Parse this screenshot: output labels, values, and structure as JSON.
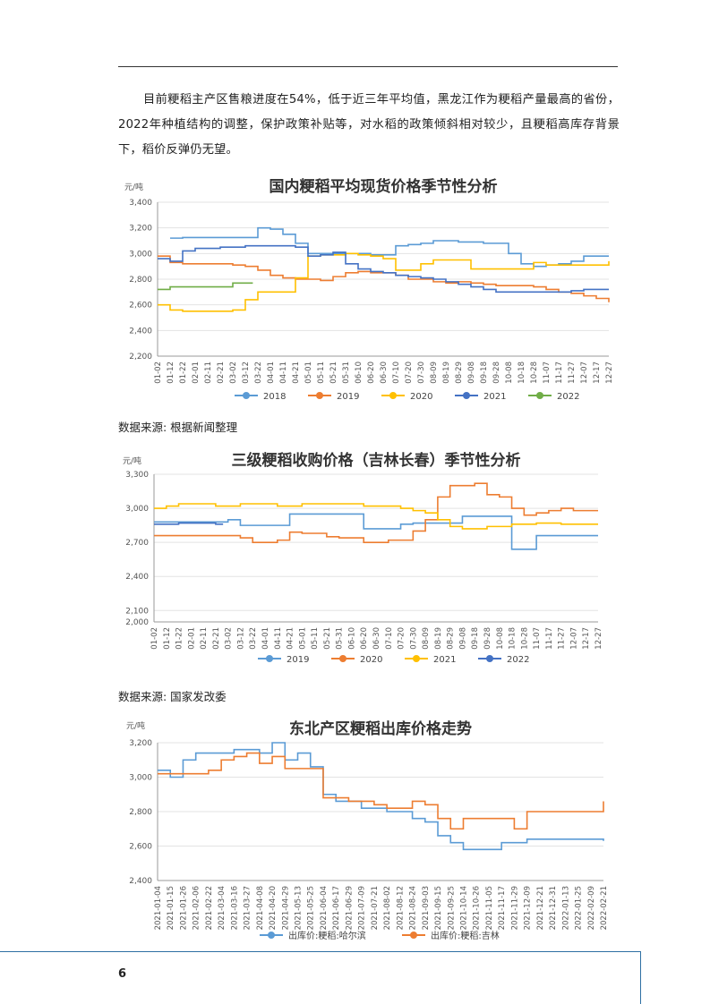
{
  "paragraph": "目前粳稻主产区售粮进度在54%，低于近三年平均值，黑龙江作为粳稻产量最高的省份，2022年种植结构的调整，保护政策补贴等，对水稻的政策倾斜相对较少，且粳稻高库存背景下，稻价反弹仍无望。",
  "source1": "数据来源: 根据新闻整理",
  "source2": "数据来源: 国家发改委",
  "page_number": "6",
  "chart_data": [
    {
      "type": "line",
      "title": "国内粳稻平均现货价格季节性分析",
      "unit": "元/吨",
      "ylim": [
        2200,
        3400
      ],
      "yticks": [
        "2,200",
        "2,400",
        "2,600",
        "2,800",
        "3,000",
        "3,200",
        "3,400"
      ],
      "categories": [
        "01-02",
        "01-12",
        "01-22",
        "02-01",
        "02-11",
        "02-21",
        "03-02",
        "03-12",
        "03-22",
        "04-01",
        "04-11",
        "04-21",
        "05-01",
        "05-11",
        "05-21",
        "05-31",
        "06-10",
        "06-20",
        "06-30",
        "07-10",
        "07-20",
        "07-30",
        "08-09",
        "08-19",
        "08-29",
        "09-08",
        "09-18",
        "09-28",
        "10-08",
        "10-18",
        "10-28",
        "11-07",
        "11-17",
        "11-27",
        "12-07",
        "12-17",
        "12-27"
      ],
      "series": [
        {
          "name": "2018",
          "color": "#5b9bd5",
          "values": [
            null,
            3120,
            3125,
            3125,
            3125,
            3125,
            3125,
            3125,
            3200,
            3190,
            3150,
            3080,
            3000,
            3000,
            3000,
            3000,
            3000,
            2990,
            2990,
            3060,
            3070,
            3080,
            3100,
            3100,
            3090,
            3090,
            3080,
            3080,
            3000,
            2920,
            2900,
            2910,
            2920,
            2940,
            2980,
            2980,
            2980
          ]
        },
        {
          "name": "2019",
          "color": "#ed7d31",
          "values": [
            2980,
            2930,
            2920,
            2920,
            2920,
            2920,
            2910,
            2900,
            2870,
            2830,
            2810,
            2800,
            2800,
            2790,
            2820,
            2850,
            2860,
            2850,
            2850,
            2830,
            2800,
            2800,
            2780,
            2770,
            2780,
            2770,
            2760,
            2750,
            2750,
            2750,
            2740,
            2720,
            2700,
            2690,
            2670,
            2650,
            2620
          ]
        },
        {
          "name": "2020",
          "color": "#ffc000",
          "values": [
            2600,
            2560,
            2550,
            2550,
            2550,
            2550,
            2560,
            2640,
            2700,
            2700,
            2700,
            2810,
            2980,
            2990,
            2990,
            3000,
            2990,
            2980,
            2960,
            2870,
            2870,
            2920,
            2950,
            2950,
            2950,
            2880,
            2880,
            2880,
            2880,
            2880,
            2930,
            2910,
            2910,
            2910,
            2910,
            2910,
            2940
          ]
        },
        {
          "name": "2021",
          "color": "#4472c4",
          "values": [
            2960,
            2940,
            3020,
            3040,
            3040,
            3050,
            3050,
            3060,
            3060,
            3060,
            3060,
            3050,
            2980,
            2990,
            3010,
            2920,
            2880,
            2860,
            2850,
            2830,
            2820,
            2810,
            2800,
            2780,
            2760,
            2740,
            2720,
            2700,
            2700,
            2700,
            2700,
            2700,
            2700,
            2710,
            2720,
            2720,
            2720
          ]
        },
        {
          "name": "2022",
          "color": "#70ad47",
          "values": [
            2720,
            2740,
            2740,
            2740,
            2740,
            2740,
            2770,
            2770,
            null,
            null,
            null,
            null,
            null,
            null,
            null,
            null,
            null,
            null,
            null,
            null,
            null,
            null,
            null,
            null,
            null,
            null,
            null,
            null,
            null,
            null,
            null,
            null,
            null,
            null,
            null,
            null,
            null
          ]
        }
      ]
    },
    {
      "type": "line",
      "title": "三级粳稻收购价格（吉林长春）季节性分析",
      "unit": "元/吨",
      "ylim": [
        2000,
        3300
      ],
      "yticks": [
        "2,000",
        "2,100",
        "2,400",
        "2,700",
        "3,000",
        "3,300"
      ],
      "categories": [
        "01-02",
        "01-12",
        "01-22",
        "02-01",
        "02-11",
        "02-21",
        "03-02",
        "03-12",
        "03-22",
        "04-01",
        "04-11",
        "04-21",
        "05-01",
        "05-11",
        "05-21",
        "05-31",
        "06-10",
        "06-20",
        "06-30",
        "07-10",
        "07-20",
        "07-30",
        "08-09",
        "08-19",
        "08-29",
        "09-08",
        "09-18",
        "09-28",
        "10-08",
        "10-18",
        "10-28",
        "11-07",
        "11-17",
        "11-27",
        "12-07",
        "12-17",
        "12-27"
      ],
      "series": [
        {
          "name": "2019",
          "color": "#5b9bd5",
          "values": [
            2880,
            2880,
            2880,
            2880,
            2880,
            2880,
            2900,
            2850,
            2850,
            2850,
            2850,
            2950,
            2950,
            2950,
            2950,
            2950,
            2950,
            2820,
            2820,
            2820,
            2860,
            2870,
            2870,
            2870,
            2870,
            2930,
            2930,
            2930,
            2930,
            2640,
            2640,
            2760,
            2760,
            2760,
            2760,
            2760,
            2760
          ]
        },
        {
          "name": "2020",
          "color": "#ed7d31",
          "values": [
            2760,
            2760,
            2760,
            2760,
            2760,
            2760,
            2760,
            2740,
            2700,
            2700,
            2720,
            2790,
            2780,
            2780,
            2750,
            2740,
            2740,
            2700,
            2700,
            2720,
            2720,
            2800,
            2900,
            3100,
            3200,
            3200,
            3220,
            3120,
            3100,
            3000,
            2940,
            2960,
            2980,
            3000,
            2980,
            2980,
            2980
          ]
        },
        {
          "name": "2021",
          "color": "#ffc000",
          "values": [
            3000,
            3020,
            3040,
            3040,
            3040,
            3020,
            3020,
            3040,
            3040,
            3040,
            3020,
            3020,
            3040,
            3040,
            3040,
            3040,
            3040,
            3020,
            3020,
            3020,
            3000,
            2980,
            2960,
            2900,
            2840,
            2820,
            2820,
            2840,
            2840,
            2860,
            2860,
            2870,
            2870,
            2860,
            2860,
            2860,
            2860
          ]
        },
        {
          "name": "2022",
          "color": "#4472c4",
          "values": [
            2860,
            2860,
            2870,
            2870,
            2870,
            2860,
            null,
            null,
            null,
            null,
            null,
            null,
            null,
            null,
            null,
            null,
            null,
            null,
            null,
            null,
            null,
            null,
            null,
            null,
            null,
            null,
            null,
            null,
            null,
            null,
            null,
            null,
            null,
            null,
            null,
            null,
            null
          ]
        }
      ]
    },
    {
      "type": "line",
      "title": "东北产区粳稻出库价格走势",
      "unit": "元/吨",
      "ylim": [
        2400,
        3200
      ],
      "yticks": [
        "2,400",
        "2,600",
        "2,800",
        "3,000",
        "3,200"
      ],
      "categories": [
        "2021-01-04",
        "2021-01-15",
        "2021-01-26",
        "2021-02-06",
        "2021-02-22",
        "2021-03-04",
        "2021-03-16",
        "2021-03-27",
        "2021-04-08",
        "2021-04-20",
        "2021-04-29",
        "2021-05-13",
        "2021-05-25",
        "2021-06-04",
        "2021-06-17",
        "2021-06-29",
        "2021-07-09",
        "2021-07-21",
        "2021-08-02",
        "2021-08-12",
        "2021-08-24",
        "2021-09-03",
        "2021-09-15",
        "2021-09-25",
        "2021-10-14",
        "2021-10-26",
        "2021-11-05",
        "2021-11-17",
        "2021-11-29",
        "2021-12-09",
        "2021-12-21",
        "2021-12-31",
        "2022-01-13",
        "2022-01-25",
        "2022-02-09",
        "2022-02-21"
      ],
      "series": [
        {
          "name": "出库价:粳稻:哈尔滨",
          "color": "#5b9bd5",
          "values": [
            3040,
            3000,
            3100,
            3140,
            3140,
            3140,
            3160,
            3160,
            3140,
            3200,
            3100,
            3140,
            3060,
            2900,
            2860,
            2860,
            2820,
            2820,
            2800,
            2800,
            2760,
            2740,
            2660,
            2620,
            2580,
            2580,
            2580,
            2620,
            2620,
            2640,
            2640,
            2640,
            2640,
            2640,
            2640,
            2630
          ]
        },
        {
          "name": "出库价:粳稻:吉林",
          "color": "#ed7d31",
          "values": [
            3020,
            3020,
            3020,
            3020,
            3040,
            3100,
            3120,
            3140,
            3080,
            3120,
            3050,
            3050,
            3050,
            2880,
            2880,
            2860,
            2860,
            2840,
            2820,
            2820,
            2860,
            2840,
            2760,
            2700,
            2760,
            2760,
            2760,
            2760,
            2700,
            2800,
            2800,
            2800,
            2800,
            2800,
            2800,
            2860
          ]
        }
      ]
    }
  ]
}
